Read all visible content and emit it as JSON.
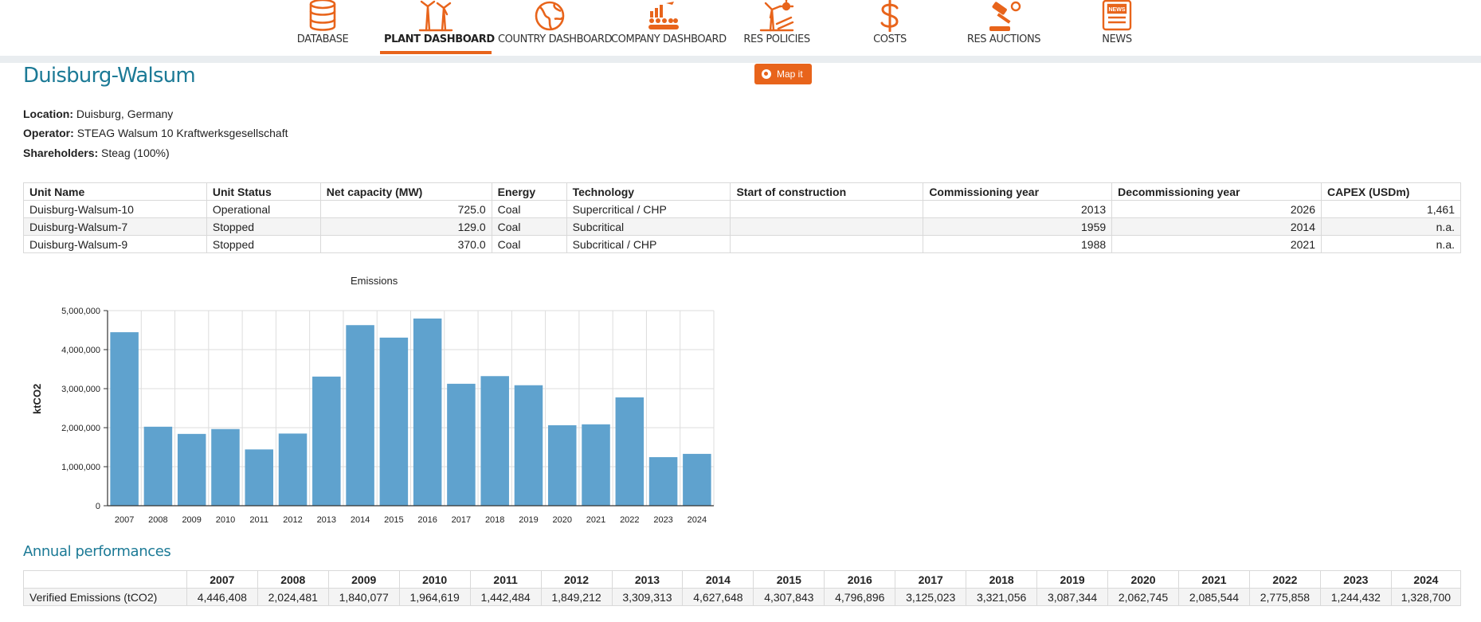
{
  "nav": {
    "items": [
      {
        "label": "DATABASE",
        "icon": "database-icon",
        "active": false
      },
      {
        "label": "PLANT DASHBOARD",
        "icon": "wind-turbine-icon",
        "active": true
      },
      {
        "label": "COUNTRY DASHBOARD",
        "icon": "globe-icon",
        "active": false
      },
      {
        "label": "COMPANY DASHBOARD",
        "icon": "company-people-icon",
        "active": false
      },
      {
        "label": "RES POLICIES",
        "icon": "sun-turbine-icon",
        "active": false
      },
      {
        "label": "COSTS",
        "icon": "dollar-icon",
        "active": false
      },
      {
        "label": "RES AUCTIONS",
        "icon": "gavel-icon",
        "active": false
      },
      {
        "label": "NEWS",
        "icon": "newspaper-icon",
        "active": false
      }
    ],
    "accent_color": "#e8641b"
  },
  "plant": {
    "name": "Duisburg-Walsum",
    "map_button": "Map it",
    "location_label": "Location:",
    "location": "Duisburg, Germany",
    "operator_label": "Operator:",
    "operator": "STEAG Walsum 10 Kraftwerksgesellschaft",
    "shareholders_label": "Shareholders:",
    "shareholders": "Steag (100%)"
  },
  "units_table": {
    "headers": [
      "Unit Name",
      "Unit Status",
      "Net capacity (MW)",
      "Energy",
      "Technology",
      "Start of construction",
      "Commissioning year",
      "Decommissioning year",
      "CAPEX (USDm)"
    ],
    "rows": [
      [
        "Duisburg-Walsum-10",
        "Operational",
        "725.0",
        "Coal",
        "Supercritical / CHP",
        "",
        "2013",
        "2026",
        "1,461"
      ],
      [
        "Duisburg-Walsum-7",
        "Stopped",
        "129.0",
        "Coal",
        "Subcritical",
        "",
        "1959",
        "2014",
        "n.a."
      ],
      [
        "Duisburg-Walsum-9",
        "Stopped",
        "370.0",
        "Coal",
        "Subcritical / CHP",
        "",
        "1988",
        "2021",
        "n.a."
      ]
    ]
  },
  "chart_data": {
    "type": "bar",
    "title": "Emissions",
    "xlabel": "",
    "ylabel": "ktCO2",
    "ylim": [
      0,
      5000000
    ],
    "yticks": [
      "0",
      "1,000,000",
      "2,000,000",
      "3,000,000",
      "4,000,000",
      "5,000,000"
    ],
    "grid": true,
    "bar_color": "#5fa2ce",
    "categories": [
      "2007",
      "2008",
      "2009",
      "2010",
      "2011",
      "2012",
      "2013",
      "2014",
      "2015",
      "2016",
      "2017",
      "2018",
      "2019",
      "2020",
      "2021",
      "2022",
      "2023",
      "2024"
    ],
    "values": [
      4446408,
      2024481,
      1840077,
      1964619,
      1442484,
      1849212,
      3309313,
      4627648,
      4307843,
      4796896,
      3125023,
      3321056,
      3087344,
      2062745,
      2085544,
      2775858,
      1244432,
      1328700
    ]
  },
  "annual": {
    "title": "Annual performances",
    "years": [
      "2007",
      "2008",
      "2009",
      "2010",
      "2011",
      "2012",
      "2013",
      "2014",
      "2015",
      "2016",
      "2017",
      "2018",
      "2019",
      "2020",
      "2021",
      "2022",
      "2023",
      "2024"
    ],
    "row_label": "Verified Emissions (tCO2)",
    "values": [
      "4,446,408",
      "2,024,481",
      "1,840,077",
      "1,964,619",
      "1,442,484",
      "1,849,212",
      "3,309,313",
      "4,627,648",
      "4,307,843",
      "4,796,896",
      "3,125,023",
      "3,321,056",
      "3,087,344",
      "2,062,745",
      "2,085,544",
      "2,775,858",
      "1,244,432",
      "1,328,700"
    ]
  }
}
